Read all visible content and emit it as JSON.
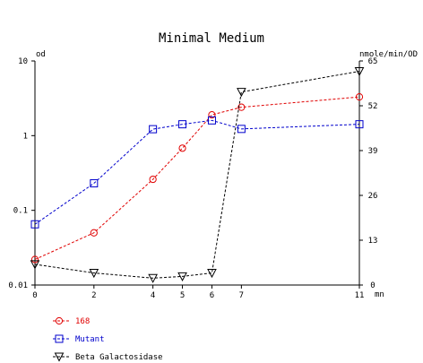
{
  "chart_data": {
    "type": "line",
    "title": "Minimal Medium",
    "x": [
      0,
      2,
      4,
      5,
      6,
      7,
      11
    ],
    "x_tick_labels": [
      "0",
      "2",
      "4",
      "5",
      "6",
      "7",
      "11"
    ],
    "xlabel": "mn",
    "xlim": [
      0,
      11
    ],
    "ylabel_left": "od",
    "ylim_left": [
      0.01,
      10
    ],
    "y_scale_left": "log",
    "y_tick_labels_left": [
      "10",
      "1",
      "0.1",
      "0.01"
    ],
    "y_tick_values_left": [
      10,
      1,
      0.1,
      0.01
    ],
    "ylabel_right": "nmole/min/OD",
    "ylim_right": [
      0,
      65
    ],
    "y_tick_labels_right": [
      "65",
      "52",
      "39",
      "26",
      "13",
      "0"
    ],
    "y_tick_values_right": [
      65,
      52,
      39,
      26,
      13,
      0
    ],
    "grid": false,
    "legend_position": "bottom-left",
    "series": [
      {
        "name": "168",
        "axis": "left",
        "marker": "circle",
        "color": "#e00000",
        "values": [
          0.022,
          0.05,
          0.26,
          0.68,
          1.9,
          2.4,
          3.3
        ]
      },
      {
        "name": "Mutant",
        "axis": "left",
        "marker": "square",
        "color": "#0000cc",
        "values": [
          0.065,
          0.23,
          1.22,
          1.42,
          1.6,
          1.23,
          1.42
        ]
      },
      {
        "name": "Beta Galactosidase",
        "axis": "right",
        "marker": "triangle",
        "color": "#000000",
        "values": [
          6,
          3.5,
          2,
          2.5,
          3.5,
          56,
          62
        ]
      }
    ]
  }
}
